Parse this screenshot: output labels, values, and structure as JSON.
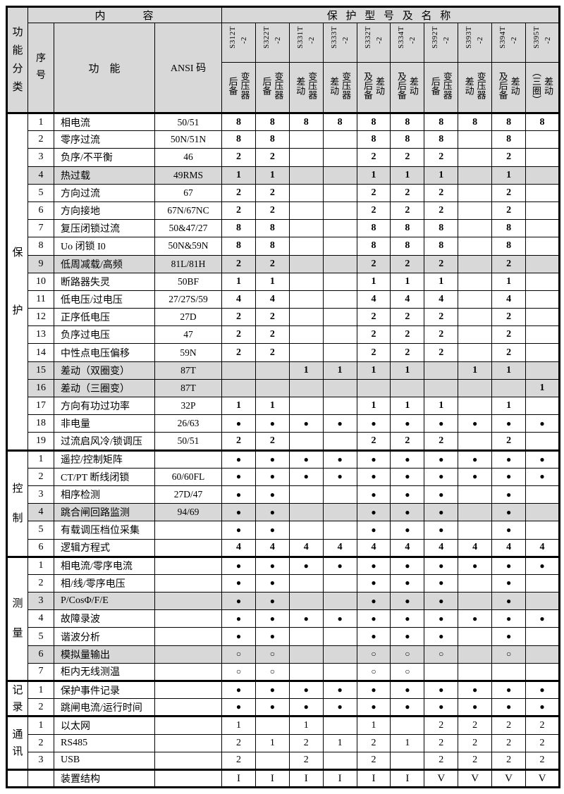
{
  "header": {
    "function_class": "功\n能\n分\n类",
    "content": "内　　　容",
    "models_title": "保 护 型 号 及 名 称",
    "seq": "序\n号",
    "function": "功　能",
    "ansi": "ANSI 码",
    "models": [
      {
        "name": "S312T",
        "suffix": "-2",
        "type": "变压器\n后备"
      },
      {
        "name": "S322T",
        "suffix": "-2",
        "type": "变压器\n后备"
      },
      {
        "name": "S331T",
        "suffix": "-2",
        "type": "变压器\n差动"
      },
      {
        "name": "S333T",
        "suffix": "-2",
        "type": "变压器\n差动"
      },
      {
        "name": "S332T",
        "suffix": "-2",
        "type": "差动\n及后备"
      },
      {
        "name": "S334T",
        "suffix": "-2",
        "type": "差动\n及后备"
      },
      {
        "name": "S392T",
        "suffix": "-2",
        "type": "变压器\n后备"
      },
      {
        "name": "S393T",
        "suffix": "-2",
        "type": "变压器\n差动"
      },
      {
        "name": "S394T",
        "suffix": "-2",
        "type": "差动\n及后备"
      },
      {
        "name": "S395T",
        "suffix": "-2",
        "type": "差动\n（三圈）"
      }
    ]
  },
  "symbols": {
    "available": "●",
    "optional": "○"
  },
  "colors": {
    "header_fill": "#d8d8d8",
    "shaded_row_fill": "#d8d8d8",
    "border": "#000000"
  },
  "sections": [
    {
      "label": "保护",
      "bold": true,
      "rows": [
        {
          "no": "1",
          "name": "相电流",
          "ansi": "50/51",
          "shaded": false,
          "values": [
            "8",
            "8",
            "8",
            "8",
            "8",
            "8",
            "8",
            "8",
            "8",
            "8"
          ]
        },
        {
          "no": "2",
          "name": "零序过流",
          "ansi": "50N/51N",
          "shaded": false,
          "values": [
            "8",
            "8",
            "",
            "",
            "8",
            "8",
            "8",
            "",
            "8",
            ""
          ]
        },
        {
          "no": "3",
          "name": "负序/不平衡",
          "ansi": "46",
          "shaded": false,
          "values": [
            "2",
            "2",
            "",
            "",
            "2",
            "2",
            "2",
            "",
            "2",
            ""
          ]
        },
        {
          "no": "4",
          "name": "热过载",
          "ansi": "49RMS",
          "shaded": true,
          "values": [
            "1",
            "1",
            "",
            "",
            "1",
            "1",
            "1",
            "",
            "1",
            ""
          ]
        },
        {
          "no": "5",
          "name": "方向过流",
          "ansi": "67",
          "shaded": false,
          "values": [
            "2",
            "2",
            "",
            "",
            "2",
            "2",
            "2",
            "",
            "2",
            ""
          ]
        },
        {
          "no": "6",
          "name": "方向接地",
          "ansi": "67N/67NC",
          "shaded": false,
          "values": [
            "2",
            "2",
            "",
            "",
            "2",
            "2",
            "2",
            "",
            "2",
            ""
          ]
        },
        {
          "no": "7",
          "name": "复压闭锁过流",
          "ansi": "50&47/27",
          "shaded": false,
          "values": [
            "8",
            "8",
            "",
            "",
            "8",
            "8",
            "8",
            "",
            "8",
            ""
          ]
        },
        {
          "no": "8",
          "name": "Uo 闭锁 I0",
          "ansi": "50N&59N",
          "shaded": false,
          "values": [
            "8",
            "8",
            "",
            "",
            "8",
            "8",
            "8",
            "",
            "8",
            ""
          ]
        },
        {
          "no": "9",
          "name": "低周减载/高频",
          "ansi": "81L/81H",
          "shaded": true,
          "values": [
            "2",
            "2",
            "",
            "",
            "2",
            "2",
            "2",
            "",
            "2",
            ""
          ]
        },
        {
          "no": "10",
          "name": "断路器失灵",
          "ansi": "50BF",
          "shaded": false,
          "values": [
            "1",
            "1",
            "",
            "",
            "1",
            "1",
            "1",
            "",
            "1",
            ""
          ]
        },
        {
          "no": "11",
          "name": "低电压/过电压",
          "ansi": "27/27S/59",
          "shaded": false,
          "values": [
            "4",
            "4",
            "",
            "",
            "4",
            "4",
            "4",
            "",
            "4",
            ""
          ]
        },
        {
          "no": "12",
          "name": "正序低电压",
          "ansi": "27D",
          "shaded": false,
          "values": [
            "2",
            "2",
            "",
            "",
            "2",
            "2",
            "2",
            "",
            "2",
            ""
          ]
        },
        {
          "no": "13",
          "name": "负序过电压",
          "ansi": "47",
          "shaded": false,
          "values": [
            "2",
            "2",
            "",
            "",
            "2",
            "2",
            "2",
            "",
            "2",
            ""
          ]
        },
        {
          "no": "14",
          "name": "中性点电压偏移",
          "ansi": "59N",
          "shaded": false,
          "values": [
            "2",
            "2",
            "",
            "",
            "2",
            "2",
            "2",
            "",
            "2",
            ""
          ]
        },
        {
          "no": "15",
          "name": "差动（双圈变）",
          "ansi": "87T",
          "shaded": true,
          "values": [
            "",
            "",
            "1",
            "1",
            "1",
            "1",
            "",
            "1",
            "1",
            ""
          ]
        },
        {
          "no": "16",
          "name": "差动（三圈变）",
          "ansi": "87T",
          "shaded": true,
          "values": [
            "",
            "",
            "",
            "",
            "",
            "",
            "",
            "",
            "",
            "1"
          ]
        },
        {
          "no": "17",
          "name": "方向有功过功率",
          "ansi": "32P",
          "shaded": false,
          "values": [
            "1",
            "1",
            "",
            "",
            "1",
            "1",
            "1",
            "",
            "1",
            ""
          ]
        },
        {
          "no": "18",
          "name": "非电量",
          "ansi": "26/63",
          "shaded": false,
          "values": [
            "●",
            "●",
            "●",
            "●",
            "●",
            "●",
            "●",
            "●",
            "●",
            "●"
          ]
        },
        {
          "no": "19",
          "name": "过流启风冷/锁调压",
          "ansi": "50/51",
          "shaded": false,
          "values": [
            "2",
            "2",
            "",
            "",
            "2",
            "2",
            "2",
            "",
            "2",
            ""
          ]
        }
      ]
    },
    {
      "label": "控制",
      "bold": true,
      "rows": [
        {
          "no": "1",
          "name": "遥控/控制矩阵",
          "ansi": "",
          "shaded": false,
          "values": [
            "●",
            "●",
            "●",
            "●",
            "●",
            "●",
            "●",
            "●",
            "●",
            "●"
          ]
        },
        {
          "no": "2",
          "name": "CT/PT 断线闭锁",
          "ansi": "60/60FL",
          "shaded": false,
          "values": [
            "●",
            "●",
            "●",
            "●",
            "●",
            "●",
            "●",
            "●",
            "●",
            "●"
          ]
        },
        {
          "no": "3",
          "name": "相序检测",
          "ansi": "27D/47",
          "shaded": false,
          "values": [
            "●",
            "●",
            "",
            "",
            "●",
            "●",
            "●",
            "",
            "●",
            ""
          ]
        },
        {
          "no": "4",
          "name": "跳合闸回路监测",
          "ansi": "94/69",
          "shaded": true,
          "values": [
            "●",
            "●",
            "",
            "",
            "●",
            "●",
            "●",
            "",
            "●",
            ""
          ]
        },
        {
          "no": "5",
          "name": "有载调压档位采集",
          "ansi": "",
          "shaded": false,
          "values": [
            "●",
            "●",
            "",
            "",
            "●",
            "●",
            "●",
            "",
            "●",
            ""
          ]
        },
        {
          "no": "6",
          "name": "逻辑方程式",
          "ansi": "",
          "shaded": false,
          "values": [
            "4",
            "4",
            "4",
            "4",
            "4",
            "4",
            "4",
            "4",
            "4",
            "4"
          ]
        }
      ]
    },
    {
      "label": "测量",
      "bold": true,
      "rows": [
        {
          "no": "1",
          "name": "相电流/零序电流",
          "ansi": "",
          "shaded": false,
          "values": [
            "●",
            "●",
            "●",
            "●",
            "●",
            "●",
            "●",
            "●",
            "●",
            "●"
          ]
        },
        {
          "no": "2",
          "name": "相/线/零序电压",
          "ansi": "",
          "shaded": false,
          "values": [
            "●",
            "●",
            "",
            "",
            "●",
            "●",
            "●",
            "",
            "●",
            ""
          ]
        },
        {
          "no": "3",
          "name": "P/CosΦ/F/E",
          "ansi": "",
          "shaded": true,
          "values": [
            "●",
            "●",
            "",
            "",
            "●",
            "●",
            "●",
            "",
            "●",
            ""
          ]
        },
        {
          "no": "4",
          "name": "故障录波",
          "ansi": "",
          "shaded": false,
          "values": [
            "●",
            "●",
            "●",
            "●",
            "●",
            "●",
            "●",
            "●",
            "●",
            "●"
          ]
        },
        {
          "no": "5",
          "name": "谐波分析",
          "ansi": "",
          "shaded": false,
          "values": [
            "●",
            "●",
            "",
            "",
            "●",
            "●",
            "●",
            "",
            "●",
            ""
          ]
        },
        {
          "no": "6",
          "name": "模拟量输出",
          "ansi": "",
          "shaded": true,
          "values": [
            "○",
            "○",
            "",
            "",
            "○",
            "○",
            "○",
            "",
            "○",
            ""
          ]
        },
        {
          "no": "7",
          "name": "柜内无线测温",
          "ansi": "",
          "shaded": false,
          "values": [
            "○",
            "○",
            "",
            "",
            "○",
            "○",
            "",
            "",
            "",
            ""
          ]
        }
      ]
    },
    {
      "label": "记录",
      "bold": true,
      "rows": [
        {
          "no": "1",
          "name": "保护事件记录",
          "ansi": "",
          "shaded": false,
          "values": [
            "●",
            "●",
            "●",
            "●",
            "●",
            "●",
            "●",
            "●",
            "●",
            "●"
          ]
        },
        {
          "no": "2",
          "name": "跳闸电流/运行时间",
          "ansi": "",
          "shaded": false,
          "values": [
            "●",
            "●",
            "●",
            "●",
            "●",
            "●",
            "●",
            "●",
            "●",
            "●"
          ]
        }
      ]
    },
    {
      "label": "通讯",
      "bold": false,
      "rows": [
        {
          "no": "1",
          "name": "以太网",
          "ansi": "",
          "shaded": false,
          "values": [
            "1",
            "",
            "1",
            "",
            "1",
            "",
            "2",
            "2",
            "2",
            "2"
          ]
        },
        {
          "no": "2",
          "name": "RS485",
          "ansi": "",
          "shaded": false,
          "values": [
            "2",
            "1",
            "2",
            "1",
            "2",
            "1",
            "2",
            "2",
            "2",
            "2"
          ]
        },
        {
          "no": "3",
          "name": "USB",
          "ansi": "",
          "shaded": false,
          "values": [
            "2",
            "",
            "2",
            "",
            "2",
            "",
            "2",
            "2",
            "2",
            "2"
          ]
        }
      ]
    }
  ],
  "footer": {
    "name": "装置结构",
    "values": [
      "I",
      "I",
      "I",
      "I",
      "I",
      "I",
      "V",
      "V",
      "V",
      "V"
    ]
  }
}
